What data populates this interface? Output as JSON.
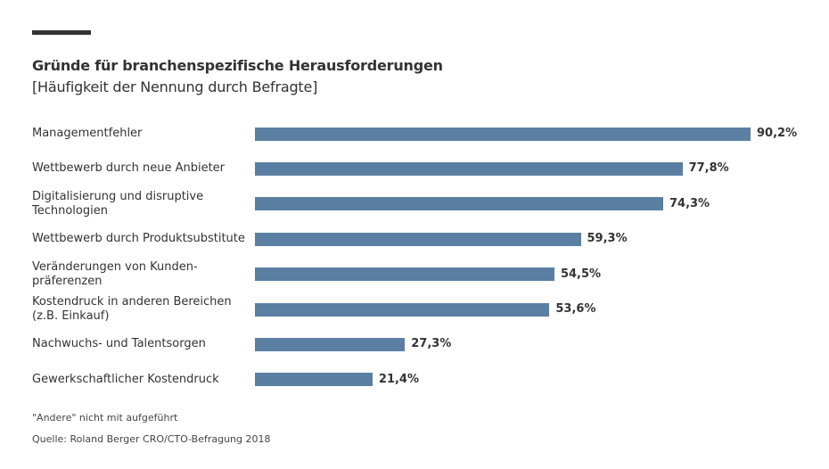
{
  "chart_data": {
    "type": "bar",
    "orientation": "horizontal",
    "title": "Gründe für branchenspezifische Herausforderungen",
    "subtitle": "[Häufigkeit der Nennung durch Befragte]",
    "categories": [
      "Managementfehler",
      "Wettbewerb durch neue Anbieter",
      "Digitalisierung und disruptive\nTechnologien",
      "Wettbewerb durch Produktsubstitute",
      "Veränderungen von Kunden-\npräferenzen",
      "Kostendruck in anderen Bereichen\n(z.B. Einkauf)",
      "Nachwuchs- und Talentsorgen",
      "Gewerkschaftlicher Kostendruck"
    ],
    "values": [
      90.2,
      77.8,
      74.3,
      59.3,
      54.5,
      53.6,
      27.3,
      21.4
    ],
    "value_labels": [
      "90,2%",
      "77,8%",
      "74,3%",
      "59,3%",
      "54,5%",
      "53,6%",
      "27,3%",
      "21,4%"
    ],
    "xlim": [
      0,
      100
    ],
    "grid": false,
    "bar_color": "#5b7fa3",
    "footnote": "\"Andere\" nicht mit aufgeführt",
    "source": "Quelle: Roland Berger CRO/CTO-Befragung 2018"
  }
}
